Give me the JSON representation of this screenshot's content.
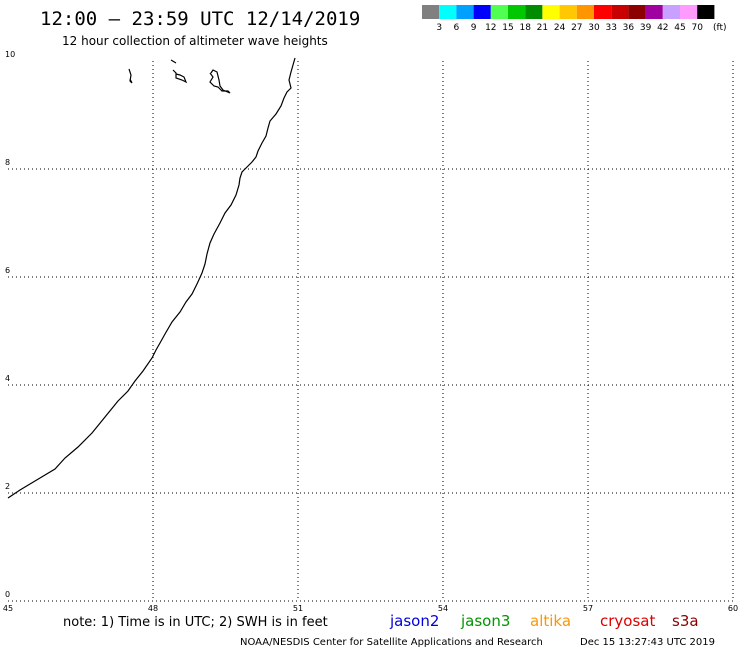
{
  "header": {
    "title": "12:00 – 23:59 UTC 12/14/2019",
    "subtitle": "12 hour collection of altimeter wave heights"
  },
  "legend": {
    "unit": "(ft)",
    "bins": [
      {
        "label": "3",
        "color": "#808080"
      },
      {
        "label": "6",
        "color": "#00ffff"
      },
      {
        "label": "9",
        "color": "#00a0ff"
      },
      {
        "label": "12",
        "color": "#0000ff"
      },
      {
        "label": "15",
        "color": "#50ff50"
      },
      {
        "label": "18",
        "color": "#00c800"
      },
      {
        "label": "21",
        "color": "#008c00"
      },
      {
        "label": "24",
        "color": "#ffff00"
      },
      {
        "label": "27",
        "color": "#ffc800"
      },
      {
        "label": "30",
        "color": "#ff9600"
      },
      {
        "label": "33",
        "color": "#ff0000"
      },
      {
        "label": "36",
        "color": "#c80000"
      },
      {
        "label": "39",
        "color": "#8c0000"
      },
      {
        "label": "42",
        "color": "#a000a0"
      },
      {
        "label": "45",
        "color": "#c8a0ff"
      },
      {
        "label": "70",
        "color": "#ff9bff"
      },
      {
        "label": "",
        "color": "#000000"
      }
    ]
  },
  "axes": {
    "x_ticks": [
      "45",
      "48",
      "51",
      "54",
      "57",
      "60"
    ],
    "y_ticks": [
      "0",
      "2",
      "4",
      "6",
      "8",
      "10"
    ]
  },
  "footer": {
    "note": "note: 1) Time is in UTC; 2) SWH is in feet",
    "satellites": [
      {
        "name": "jason2",
        "color": "#0000dc"
      },
      {
        "name": "jason3",
        "color": "#009600"
      },
      {
        "name": "altika",
        "color": "#ff9600"
      },
      {
        "name": "cryosat",
        "color": "#dc0000"
      },
      {
        "name": "s3a",
        "color": "#8c0000"
      }
    ],
    "credit": "NOAA/NESDIS Center for Satellite Applications and Research",
    "timestamp": "Dec 15 13:27:43 UTC 2019"
  }
}
